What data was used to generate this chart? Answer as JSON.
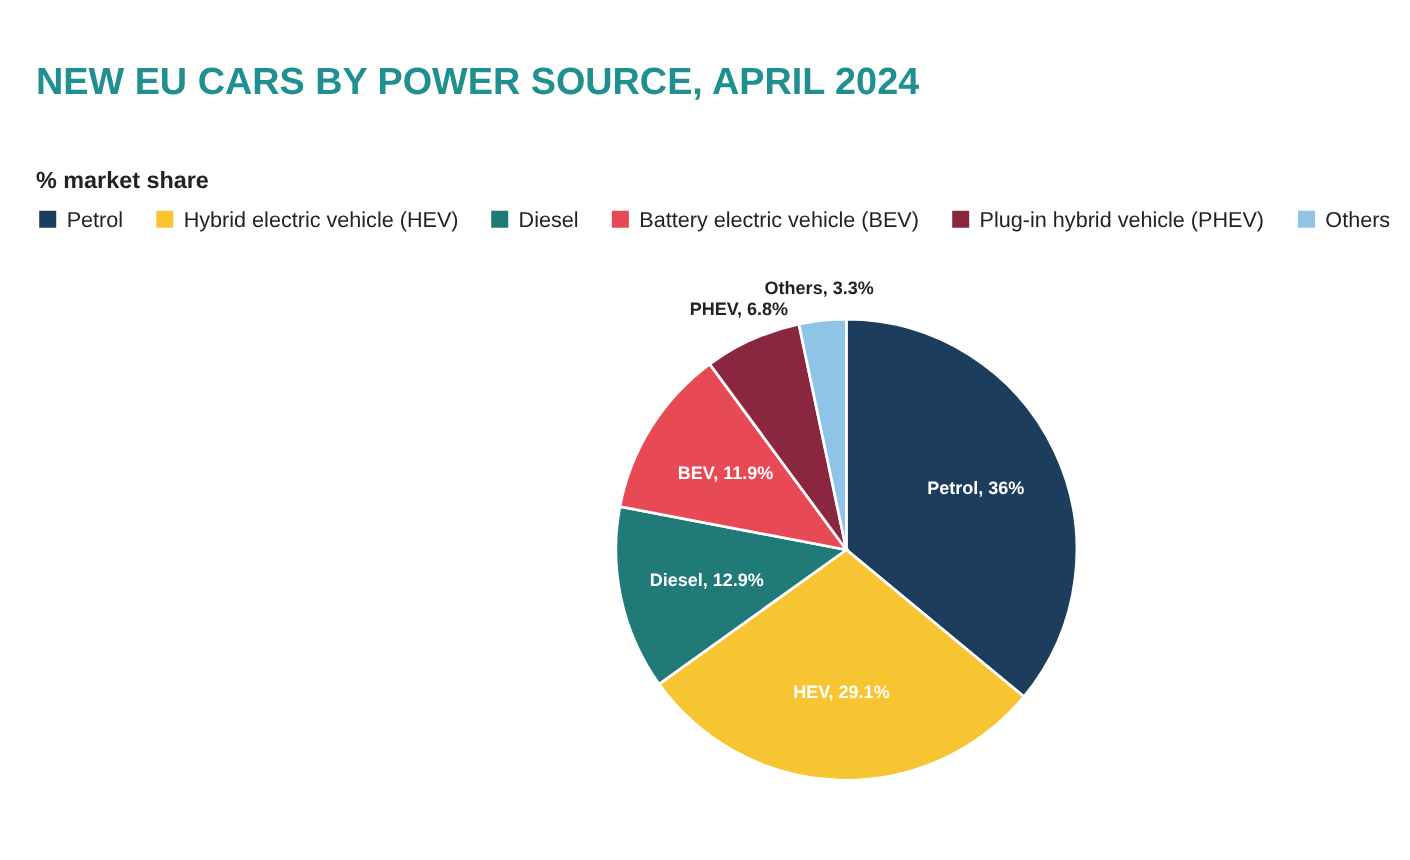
{
  "chart_data": {
    "type": "pie",
    "title": "NEW EU CARS BY POWER SOURCE, APRIL 2024",
    "subtitle": "% market share",
    "categories": [
      "Petrol",
      "Hybrid electric vehicle (HEV)",
      "Diesel",
      "Battery electric vehicle (BEV)",
      "Plug-in hybrid vehicle (PHEV)",
      "Others"
    ],
    "values": [
      36,
      29.1,
      12.9,
      11.9,
      6.8,
      3.3
    ],
    "colors": [
      "#1d3d5c",
      "#f7c531",
      "#1f7a78",
      "#e84a55",
      "#8b2641",
      "#8fc3e8"
    ],
    "value_labels": [
      "Petrol, 36%",
      "HEV, 29.1%",
      "Diesel, 12.9%",
      "BEV, 11.9%",
      "PHEV, 6.8%",
      "Others, 3.3%"
    ],
    "legend": "top"
  }
}
